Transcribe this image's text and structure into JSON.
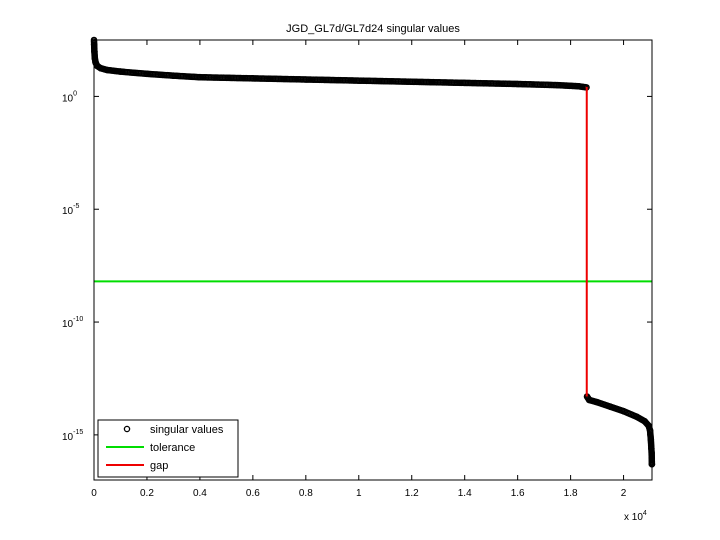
{
  "chart_data": {
    "type": "scatter",
    "title": "JGD_GL7d/GL7d24 singular values",
    "xlabel": "",
    "ylabel": "",
    "x_multiplier_label": "x 10",
    "x_multiplier_exp": "4",
    "xlim": [
      0,
      21074
    ],
    "ylim_log10": [
      -17,
      2.5
    ],
    "yscale": "log",
    "xticks": [
      {
        "value": 0,
        "label": "0"
      },
      {
        "value": 2000,
        "label": "0.2"
      },
      {
        "value": 4000,
        "label": "0.4"
      },
      {
        "value": 6000,
        "label": "0.6"
      },
      {
        "value": 8000,
        "label": "0.8"
      },
      {
        "value": 10000,
        "label": "1"
      },
      {
        "value": 12000,
        "label": "1.2"
      },
      {
        "value": 14000,
        "label": "1.4"
      },
      {
        "value": 16000,
        "label": "1.6"
      },
      {
        "value": 18000,
        "label": "1.8"
      },
      {
        "value": 20000,
        "label": "2"
      }
    ],
    "yticks": [
      {
        "log10": 0,
        "base": "10",
        "exp": "0"
      },
      {
        "log10": -5,
        "base": "10",
        "exp": "-5"
      },
      {
        "log10": -10,
        "base": "10",
        "exp": "-10"
      },
      {
        "log10": -15,
        "base": "10",
        "exp": "-15"
      }
    ],
    "grid": false,
    "legend_position": "bottom-left",
    "series": [
      {
        "name": "singular values",
        "color": "#000000",
        "marker": "circle",
        "points_log10": [
          [
            0,
            2.5
          ],
          [
            5,
            2.3
          ],
          [
            15,
            2.0
          ],
          [
            30,
            1.7
          ],
          [
            60,
            1.5
          ],
          [
            120,
            1.35
          ],
          [
            250,
            1.25
          ],
          [
            500,
            1.17
          ],
          [
            1000,
            1.1
          ],
          [
            2000,
            1.0
          ],
          [
            3000,
            0.92
          ],
          [
            4000,
            0.85
          ],
          [
            6000,
            0.8
          ],
          [
            8000,
            0.75
          ],
          [
            10000,
            0.7
          ],
          [
            12000,
            0.65
          ],
          [
            14000,
            0.6
          ],
          [
            16000,
            0.55
          ],
          [
            17500,
            0.5
          ],
          [
            18300,
            0.45
          ],
          [
            18600,
            0.4
          ],
          [
            18620,
            -13.3
          ],
          [
            18700,
            -13.45
          ],
          [
            19000,
            -13.55
          ],
          [
            19500,
            -13.75
          ],
          [
            20000,
            -13.95
          ],
          [
            20500,
            -14.2
          ],
          [
            20800,
            -14.4
          ],
          [
            20950,
            -14.6
          ],
          [
            21000,
            -14.8
          ],
          [
            21030,
            -15.2
          ],
          [
            21050,
            -15.6
          ],
          [
            21060,
            -15.8
          ],
          [
            21070,
            -16.3
          ]
        ]
      },
      {
        "name": "tolerance",
        "color": "#00dd00",
        "marker": "none",
        "value_log10": -8.2
      },
      {
        "name": "gap",
        "color": "#ee0000",
        "marker": "none",
        "x": 18610,
        "from_log10": 0.42,
        "to_log10": -13.3
      }
    ]
  }
}
